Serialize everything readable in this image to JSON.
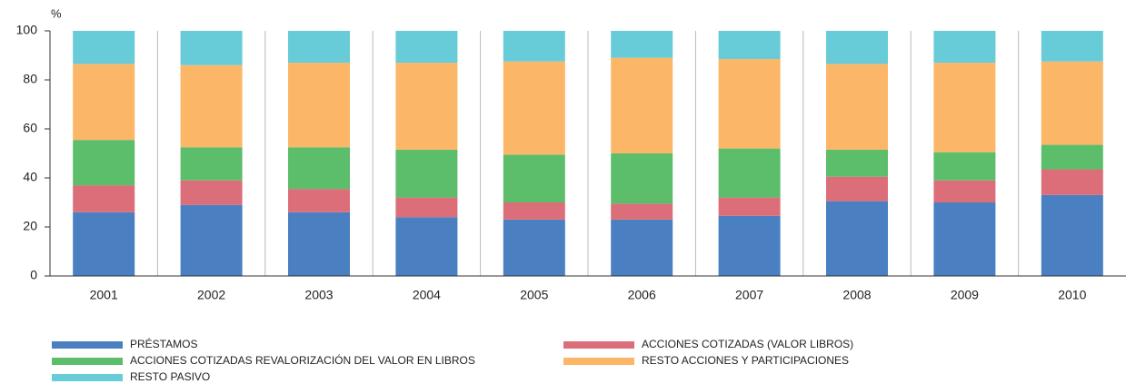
{
  "chart_data": {
    "type": "stacked_bar",
    "y_label": "%",
    "categories": [
      "2001",
      "2002",
      "2003",
      "2004",
      "2005",
      "2006",
      "2007",
      "2008",
      "2009",
      "2010"
    ],
    "series": [
      {
        "name": "PRÉSTAMOS",
        "color": "#4a7fc1",
        "values": [
          26,
          29,
          26,
          24,
          23,
          23,
          24.5,
          30.5,
          30,
          33
        ]
      },
      {
        "name": "ACCIONES COTIZADAS (VALOR LIBROS)",
        "color": "#dc6e7a",
        "values": [
          11,
          10,
          9.5,
          8,
          7,
          6.5,
          7.5,
          10,
          9,
          10.5
        ]
      },
      {
        "name": "ACCIONES COTIZADAS REVALORIZACIÓN DEL VALOR EN LIBROS",
        "color": "#5cbd6a",
        "values": [
          18.5,
          13.5,
          17,
          19.5,
          19.5,
          20.5,
          20,
          11,
          11.5,
          10
        ]
      },
      {
        "name": "RESTO ACCIONES Y PARTICIPACIONES",
        "color": "#fbb767",
        "values": [
          31,
          33.5,
          34.5,
          35.5,
          38,
          39,
          36.5,
          35,
          36.5,
          34
        ]
      },
      {
        "name": "RESTO PASIVO",
        "color": "#68cbd8",
        "values": [
          13.5,
          14,
          13,
          13,
          12.5,
          11,
          11.5,
          13.5,
          13,
          12.5
        ]
      }
    ],
    "ylim": [
      0,
      100
    ],
    "yticks": [
      0,
      20,
      40,
      60,
      80,
      100
    ]
  }
}
